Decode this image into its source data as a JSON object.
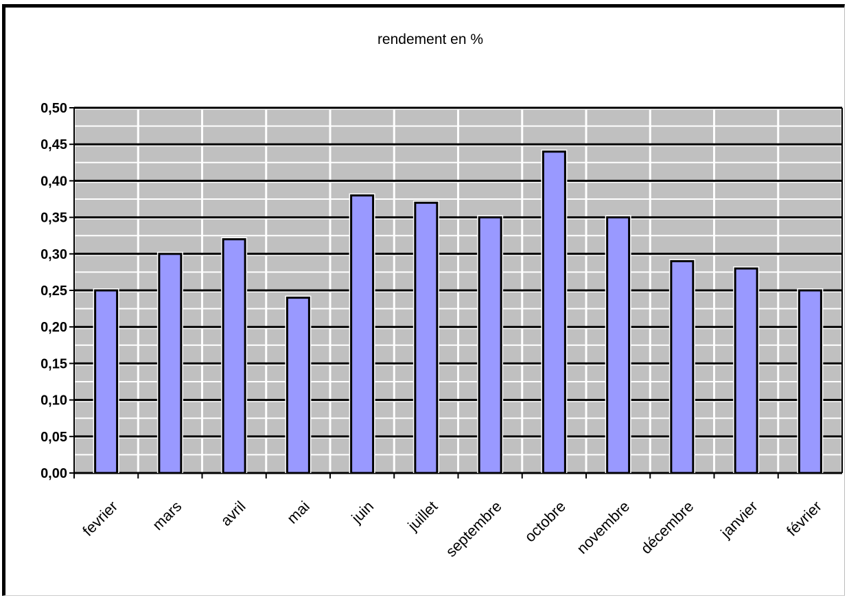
{
  "chart_data": {
    "type": "bar",
    "title": "rendement en %",
    "xlabel": "",
    "ylabel": "",
    "categories": [
      "fevrier",
      "mars",
      "avril",
      "mai",
      "juin",
      "juillet",
      "septembre",
      "octobre",
      "novembre",
      "décembre",
      "janvier",
      "février"
    ],
    "values": [
      0.25,
      0.3,
      0.32,
      0.24,
      0.38,
      0.37,
      0.35,
      0.44,
      0.35,
      0.29,
      0.28,
      0.25
    ],
    "ylim": [
      0,
      0.5
    ],
    "yticks": [
      "0,00",
      "0,05",
      "0,10",
      "0,15",
      "0,20",
      "0,25",
      "0,30",
      "0,35",
      "0,40",
      "0,45",
      "0,50"
    ],
    "grid": true,
    "legend": "none",
    "colors": {
      "bar_fill": "#9999ff",
      "bar_stroke": "#000000",
      "plot_background": "#c0c0c0",
      "gridline": "#000000"
    }
  }
}
